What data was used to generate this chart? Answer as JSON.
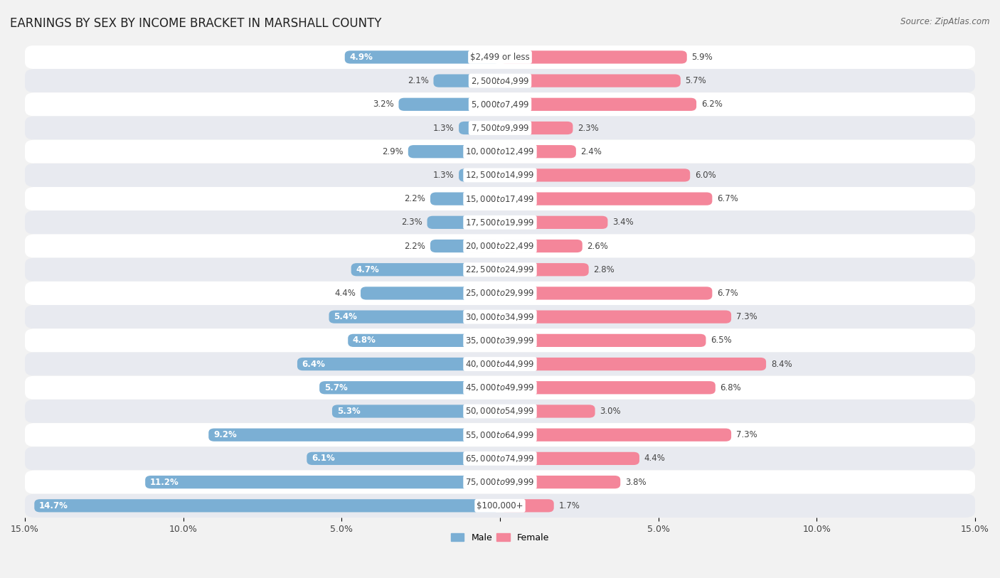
{
  "title": "EARNINGS BY SEX BY INCOME BRACKET IN MARSHALL COUNTY",
  "source": "Source: ZipAtlas.com",
  "categories": [
    "$2,499 or less",
    "$2,500 to $4,999",
    "$5,000 to $7,499",
    "$7,500 to $9,999",
    "$10,000 to $12,499",
    "$12,500 to $14,999",
    "$15,000 to $17,499",
    "$17,500 to $19,999",
    "$20,000 to $22,499",
    "$22,500 to $24,999",
    "$25,000 to $29,999",
    "$30,000 to $34,999",
    "$35,000 to $39,999",
    "$40,000 to $44,999",
    "$45,000 to $49,999",
    "$50,000 to $54,999",
    "$55,000 to $64,999",
    "$65,000 to $74,999",
    "$75,000 to $99,999",
    "$100,000+"
  ],
  "male_values": [
    4.9,
    2.1,
    3.2,
    1.3,
    2.9,
    1.3,
    2.2,
    2.3,
    2.2,
    4.7,
    4.4,
    5.4,
    4.8,
    6.4,
    5.7,
    5.3,
    9.2,
    6.1,
    11.2,
    14.7
  ],
  "female_values": [
    5.9,
    5.7,
    6.2,
    2.3,
    2.4,
    6.0,
    6.7,
    3.4,
    2.6,
    2.8,
    6.7,
    7.3,
    6.5,
    8.4,
    6.8,
    3.0,
    7.3,
    4.4,
    3.8,
    1.7
  ],
  "male_color": "#7bafd4",
  "female_color": "#f4869a",
  "male_label": "Male",
  "female_label": "Female",
  "xlim": 15.0,
  "background_color": "#f2f2f2",
  "row_colors_even": "#ffffff",
  "row_colors_odd": "#e8eaf0",
  "title_fontsize": 12,
  "source_fontsize": 8.5,
  "axis_label_fontsize": 9,
  "bar_label_fontsize": 8.5,
  "category_fontsize": 8.5,
  "bar_height": 0.55,
  "inner_label_threshold": 4.5
}
